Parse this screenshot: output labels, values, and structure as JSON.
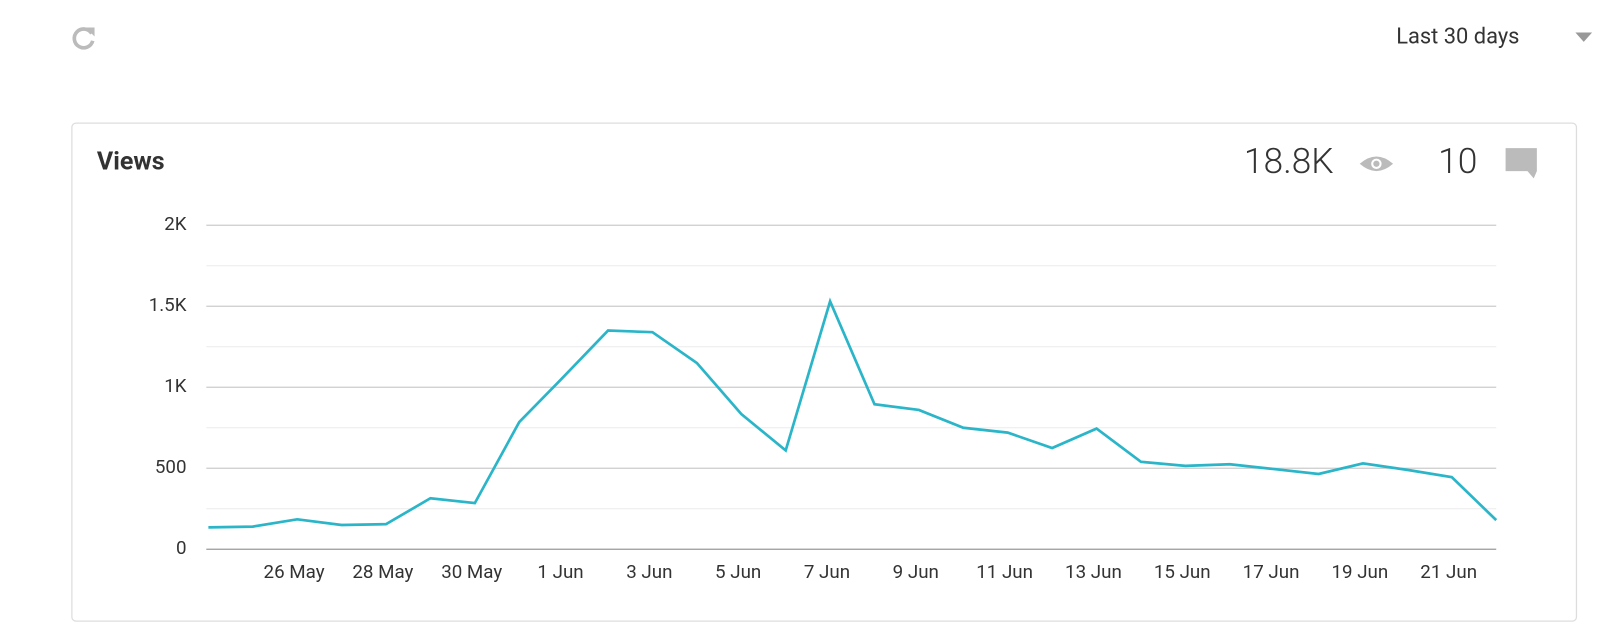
{
  "header": {
    "period": "Last 30 days"
  },
  "chart_data": {
    "type": "line",
    "title": "Views",
    "views_total": "18.8K",
    "comments_total": 10,
    "categories": [
      null,
      null,
      "26 May",
      null,
      "28 May",
      null,
      "30 May",
      null,
      "1 Jun",
      null,
      "3 Jun",
      null,
      "5 Jun",
      null,
      "7 Jun",
      null,
      "9 Jun",
      null,
      "11 Jun",
      null,
      "13 Jun",
      null,
      "15 Jun",
      null,
      "17 Jun",
      null,
      "19 Jun",
      null,
      "21 Jun",
      null
    ],
    "series": [
      {
        "name": "Views",
        "color": "#2bb5c8",
        "values": [
          135,
          140,
          185,
          150,
          155,
          315,
          285,
          785,
          1065,
          1350,
          1340,
          1150,
          835,
          610,
          1530,
          895,
          860,
          750,
          720,
          625,
          745,
          540,
          515,
          525,
          495,
          465,
          530,
          490,
          445,
          180
        ]
      }
    ],
    "ylim": [
      0,
      2000
    ],
    "yticks": [
      0,
      500,
      {
        "value": 1000,
        "label": "1K"
      },
      {
        "value": 1500,
        "label": "1.5K"
      },
      {
        "value": 2000,
        "label": "2K"
      }
    ],
    "minor_yticks": [
      250,
      750,
      1250,
      1750
    ],
    "grid": true
  }
}
